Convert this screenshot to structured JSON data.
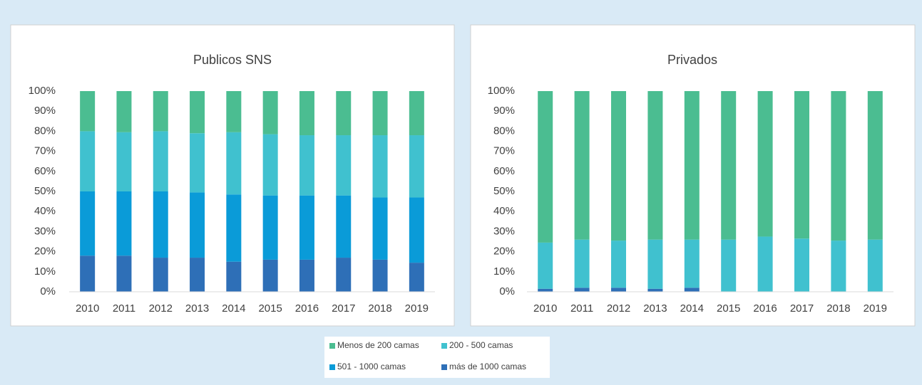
{
  "chart_data": [
    {
      "type": "stacked_bar",
      "title": "Publicos SNS",
      "categories": [
        "2010",
        "2011",
        "2012",
        "2013",
        "2014",
        "2015",
        "2016",
        "2017",
        "2018",
        "2019"
      ],
      "ylim": [
        0,
        100
      ],
      "yticks": [
        {
          "value": 0,
          "label": "0%"
        },
        {
          "value": 10,
          "label": "10%"
        },
        {
          "value": 20,
          "label": "20%"
        },
        {
          "value": 30,
          "label": "30%"
        },
        {
          "value": 40,
          "label": "40%"
        },
        {
          "value": 50,
          "label": "50%"
        },
        {
          "value": 60,
          "label": "60%"
        },
        {
          "value": 70,
          "label": "70%"
        },
        {
          "value": 80,
          "label": "80%"
        },
        {
          "value": 90,
          "label": "90%"
        },
        {
          "value": 100,
          "label": "100%"
        }
      ],
      "series": [
        {
          "name": "más de 1000 camas",
          "color": "#2e6fb7",
          "values": [
            18,
            18,
            17,
            17,
            15,
            16,
            16,
            17,
            16,
            14.5
          ]
        },
        {
          "name": "501 - 1000 camas",
          "color": "#0a9bd8",
          "values": [
            32,
            32,
            33,
            32.5,
            33.5,
            32,
            32,
            31,
            31,
            32.5
          ]
        },
        {
          "name": "200 - 500 camas",
          "color": "#40c1cf",
          "values": [
            30,
            29.5,
            30,
            29.5,
            31,
            30.5,
            30,
            30,
            31,
            31
          ]
        },
        {
          "name": "Menos de 200 camas",
          "color": "#4bbd91",
          "values": [
            20,
            20.5,
            20,
            21,
            20.5,
            21.5,
            22,
            22,
            22,
            22
          ]
        }
      ]
    },
    {
      "type": "stacked_bar",
      "title": "Privados",
      "categories": [
        "2010",
        "2011",
        "2012",
        "2013",
        "2014",
        "2015",
        "2016",
        "2017",
        "2018",
        "2019"
      ],
      "ylim": [
        0,
        100
      ],
      "yticks": [
        {
          "value": 0,
          "label": "0%"
        },
        {
          "value": 10,
          "label": "10%"
        },
        {
          "value": 20,
          "label": "20%"
        },
        {
          "value": 30,
          "label": "30%"
        },
        {
          "value": 40,
          "label": "40%"
        },
        {
          "value": 50,
          "label": "50%"
        },
        {
          "value": 60,
          "label": "60%"
        },
        {
          "value": 70,
          "label": "70%"
        },
        {
          "value": 80,
          "label": "80%"
        },
        {
          "value": 90,
          "label": "90%"
        },
        {
          "value": 100,
          "label": "100%"
        }
      ],
      "series": [
        {
          "name": "más de 1000 camas",
          "color": "#2e6fb7",
          "values": [
            1.5,
            2,
            2,
            1.5,
            2,
            0,
            0,
            0,
            0,
            0
          ]
        },
        {
          "name": "501 - 1000 camas",
          "color": "#0a9bd8",
          "values": [
            0,
            0,
            0,
            0,
            0,
            0,
            0,
            0,
            0,
            0
          ]
        },
        {
          "name": "200 - 500 camas",
          "color": "#40c1cf",
          "values": [
            23,
            24,
            23.5,
            24.5,
            24,
            26,
            27.5,
            26.5,
            25.5,
            26
          ]
        },
        {
          "name": "Menos de 200 camas",
          "color": "#4bbd91",
          "values": [
            75.5,
            74,
            74.5,
            74,
            74,
            74,
            72.5,
            73.5,
            74.5,
            74
          ]
        }
      ]
    }
  ]
}
